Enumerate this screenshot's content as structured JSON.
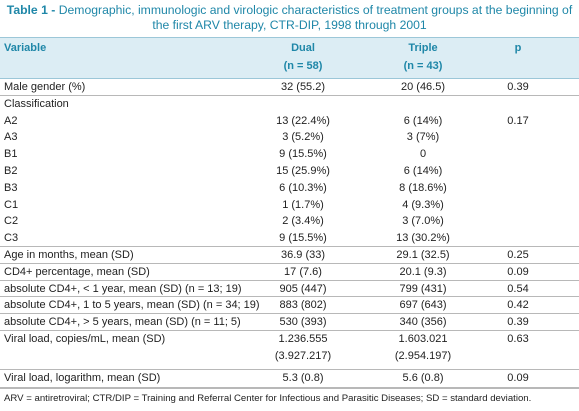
{
  "title": {
    "label": "Table 1 -",
    "text": "Demographic, immunologic and virologic characteristics of treatment groups at the beginning of the first ARV therapy, CTR-DIP, 1998 through 2001"
  },
  "header": {
    "columns": [
      "Variable",
      "Dual",
      "Triple",
      "p"
    ],
    "counts": [
      "(n = 58)",
      "(n = 43)"
    ]
  },
  "table": {
    "rows": [
      [
        "Male gender (%)",
        "32 (55.2)",
        "20 (46.5)",
        "0.39"
      ],
      [
        "Classification",
        null,
        null,
        null
      ],
      [
        "A2",
        "13 (22.4%)",
        "6 (14%)",
        "0.17"
      ],
      [
        "A3",
        "3 (5.2%)",
        "3 (7%)",
        null
      ],
      [
        "B1",
        "9 (15.5%)",
        "0",
        null
      ],
      [
        "B2",
        "15 (25.9%)",
        "6 (14%)",
        null
      ],
      [
        "B3",
        "6 (10.3%)",
        "8 (18.6%)",
        null
      ],
      [
        "C1",
        "1 (1.7%)",
        "4 (9.3%)",
        null
      ],
      [
        "C2",
        "2 (3.4%)",
        "3 (7.0%)",
        null
      ],
      [
        "C3",
        "9 (15.5%)",
        "13 (30.2%)",
        null
      ],
      [
        "Age in months, mean (SD)",
        "36.9 (33)",
        "29.1 (32.5)",
        "0.25"
      ],
      [
        "CD4+ percentage, mean (SD)",
        "17 (7.6)",
        "20.1 (9.3)",
        "0.09"
      ],
      [
        "absolute CD4+, < 1 year, mean (SD) (n = 13; 19)",
        "905 (447)",
        "799 (431)",
        "0.54"
      ],
      [
        "absolute CD4+, 1 to 5 years, mean (SD) (n = 34; 19)",
        "883 (802)",
        "697 (643)",
        "0.42"
      ],
      [
        "absolute CD4+, > 5 years, mean (SD) (n = 11; 5)",
        "530 (393)",
        "340 (356)",
        "0.39"
      ],
      [
        "Viral load, copies/mL, mean (SD)",
        "1.236.555",
        "1.603.021",
        "0.63"
      ],
      [
        null,
        "(3.927.217)",
        "(2.954.197)",
        null
      ],
      [
        "Viral load, logarithm, mean (SD)",
        "5.3 (0.8)",
        "5.6 (0.8)",
        "0.09"
      ]
    ]
  },
  "footnote": "ARV = antiretroviral; CTR/DIP = Training and Referral Center for Infectious and Parasitic Diseases; SD = standard deviation."
}
